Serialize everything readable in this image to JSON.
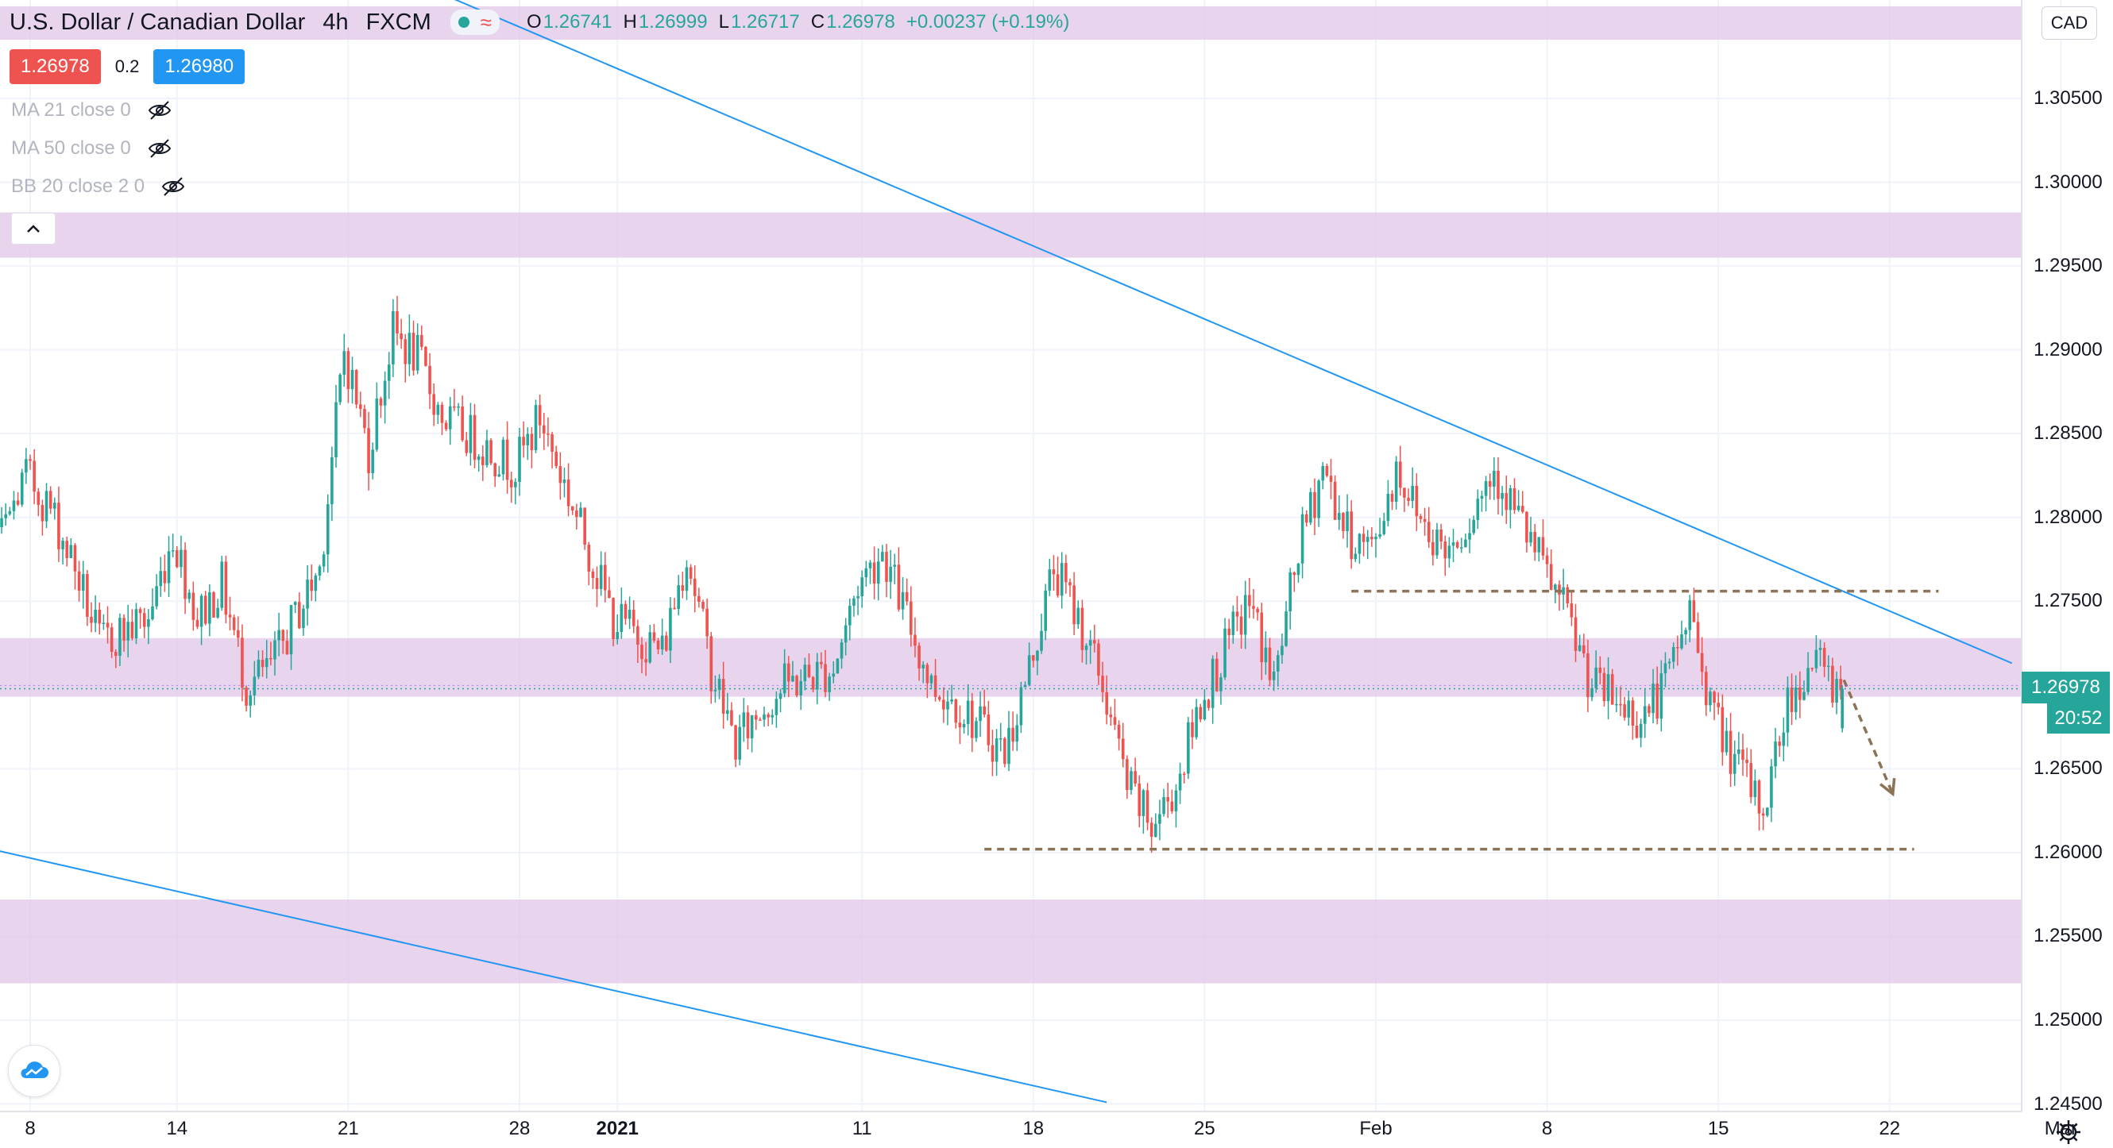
{
  "header": {
    "symbol": "U.S. Dollar / Canadian Dollar",
    "timeframe": "4h",
    "exchange": "FXCM",
    "ohlc": {
      "o_label": "O",
      "o": "1.26741",
      "h_label": "H",
      "h": "1.26999",
      "l_label": "L",
      "l": "1.26717",
      "c_label": "C",
      "c": "1.26978",
      "change": "+0.00237 (+0.19%)"
    },
    "status_icons": [
      "market-open-dot-icon",
      "data-updates-wave-icon"
    ]
  },
  "trade": {
    "sell": "1.26978",
    "spread": "0.2",
    "buy": "1.26980"
  },
  "indicators": [
    {
      "label": "MA 21 close 0",
      "icon": "eye-crossed-icon"
    },
    {
      "label": "MA 50 close 0",
      "icon": "eye-crossed-icon"
    },
    {
      "label": "BB 20 close 2 0",
      "icon": "eye-crossed-icon"
    }
  ],
  "collapse_icon": "chevron-up-icon",
  "price_axis": {
    "currency": "CAD",
    "current_price": "1.26978",
    "countdown": "20:52"
  },
  "chart_data": {
    "type": "candlestick",
    "title": "U.S. Dollar / Canadian Dollar",
    "timeframe": "4h",
    "ylim": [
      1.244,
      1.3105
    ],
    "y_ticks": [
      "1.30500",
      "1.30000",
      "1.29500",
      "1.29000",
      "1.28500",
      "1.28000",
      "1.27500",
      "1.27000",
      "1.26500",
      "1.26000",
      "1.25500",
      "1.25000",
      "1.24500"
    ],
    "x_ticks": [
      {
        "label": "8",
        "date": "2020-12-08"
      },
      {
        "label": "14",
        "date": "2020-12-14"
      },
      {
        "label": "21",
        "date": "2020-12-21"
      },
      {
        "label": "28",
        "date": "2020-12-28"
      },
      {
        "label": "2021",
        "date": "2021-01-01",
        "bold": true
      },
      {
        "label": "11",
        "date": "2021-01-11"
      },
      {
        "label": "18",
        "date": "2021-01-18"
      },
      {
        "label": "25",
        "date": "2021-01-25"
      },
      {
        "label": "Feb",
        "date": "2021-02-01"
      },
      {
        "label": "8",
        "date": "2021-02-08"
      },
      {
        "label": "15",
        "date": "2021-02-15"
      },
      {
        "label": "22",
        "date": "2021-02-22"
      },
      {
        "label": "Mar",
        "date": "2021-03-01"
      }
    ],
    "colors": {
      "up": "#26a69a",
      "down": "#ef5350",
      "zone": "#e1c6e8",
      "trendline": "#2196f3",
      "level_line": "#8b7355",
      "current_price_line": "#26a69a"
    },
    "price_path": [
      {
        "date": "2020-12-04",
        "price": 1.28
      },
      {
        "date": "2020-12-05",
        "price": 1.2815
      },
      {
        "date": "2020-12-07",
        "price": 1.279
      },
      {
        "date": "2020-12-08",
        "price": 1.2825
      },
      {
        "date": "2020-12-09",
        "price": 1.2805
      },
      {
        "date": "2020-12-10",
        "price": 1.277
      },
      {
        "date": "2020-12-11",
        "price": 1.2725
      },
      {
        "date": "2020-12-13",
        "price": 1.274
      },
      {
        "date": "2020-12-14",
        "price": 1.279
      },
      {
        "date": "2020-12-15",
        "price": 1.274
      },
      {
        "date": "2020-12-16",
        "price": 1.276
      },
      {
        "date": "2020-12-17",
        "price": 1.27
      },
      {
        "date": "2020-12-18",
        "price": 1.271
      },
      {
        "date": "2020-12-20",
        "price": 1.277
      },
      {
        "date": "2020-12-21",
        "price": 1.29
      },
      {
        "date": "2020-12-22",
        "price": 1.284
      },
      {
        "date": "2020-12-23",
        "price": 1.291
      },
      {
        "date": "2020-12-24",
        "price": 1.2895
      },
      {
        "date": "2020-12-25",
        "price": 1.286
      },
      {
        "date": "2020-12-27",
        "price": 1.284
      },
      {
        "date": "2020-12-28",
        "price": 1.283
      },
      {
        "date": "2020-12-29",
        "price": 1.286
      },
      {
        "date": "2020-12-30",
        "price": 1.282
      },
      {
        "date": "2020-12-31",
        "price": 1.278
      },
      {
        "date": "2021-01-01",
        "price": 1.274
      },
      {
        "date": "2021-01-03",
        "price": 1.272
      },
      {
        "date": "2021-01-04",
        "price": 1.278
      },
      {
        "date": "2021-01-05",
        "price": 1.271
      },
      {
        "date": "2021-01-06",
        "price": 1.2665
      },
      {
        "date": "2021-01-07",
        "price": 1.2685
      },
      {
        "date": "2021-01-08",
        "price": 1.27
      },
      {
        "date": "2021-01-10",
        "price": 1.271
      },
      {
        "date": "2021-01-11",
        "price": 1.276
      },
      {
        "date": "2021-01-12",
        "price": 1.278
      },
      {
        "date": "2021-01-13",
        "price": 1.274
      },
      {
        "date": "2021-01-14",
        "price": 1.27
      },
      {
        "date": "2021-01-15",
        "price": 1.269
      },
      {
        "date": "2021-01-17",
        "price": 1.266
      },
      {
        "date": "2021-01-18",
        "price": 1.271
      },
      {
        "date": "2021-01-19",
        "price": 1.277
      },
      {
        "date": "2021-01-20",
        "price": 1.274
      },
      {
        "date": "2021-01-21",
        "price": 1.27
      },
      {
        "date": "2021-01-22",
        "price": 1.264
      },
      {
        "date": "2021-01-23",
        "price": 1.2615
      },
      {
        "date": "2021-01-24",
        "price": 1.264
      },
      {
        "date": "2021-01-25",
        "price": 1.269
      },
      {
        "date": "2021-01-26",
        "price": 1.272
      },
      {
        "date": "2021-01-27",
        "price": 1.275
      },
      {
        "date": "2021-01-28",
        "price": 1.27
      },
      {
        "date": "2021-01-29",
        "price": 1.278
      },
      {
        "date": "2021-01-30",
        "price": 1.283
      },
      {
        "date": "2021-01-31",
        "price": 1.279
      },
      {
        "date": "2021-02-01",
        "price": 1.278
      },
      {
        "date": "2021-02-02",
        "price": 1.283
      },
      {
        "date": "2021-02-03",
        "price": 1.28
      },
      {
        "date": "2021-02-04",
        "price": 1.278
      },
      {
        "date": "2021-02-05",
        "price": 1.28
      },
      {
        "date": "2021-02-06",
        "price": 1.283
      },
      {
        "date": "2021-02-07",
        "price": 1.28
      },
      {
        "date": "2021-02-08",
        "price": 1.277
      },
      {
        "date": "2021-02-09",
        "price": 1.274
      },
      {
        "date": "2021-02-10",
        "price": 1.27
      },
      {
        "date": "2021-02-11",
        "price": 1.269
      },
      {
        "date": "2021-02-12",
        "price": 1.268
      },
      {
        "date": "2021-02-13",
        "price": 1.27
      },
      {
        "date": "2021-02-14",
        "price": 1.2745
      },
      {
        "date": "2021-02-15",
        "price": 1.268
      },
      {
        "date": "2021-02-16",
        "price": 1.265
      },
      {
        "date": "2021-02-17",
        "price": 1.2625
      },
      {
        "date": "2021-02-18",
        "price": 1.269
      },
      {
        "date": "2021-02-19",
        "price": 1.2715
      },
      {
        "date": "2021-02-20",
        "price": 1.27
      }
    ],
    "last_candle": {
      "open": 1.26741,
      "high": 1.26999,
      "low": 1.26717,
      "close": 1.26978
    },
    "current_price": 1.26978,
    "zones": [
      {
        "from": 1.3085,
        "to": 1.3105
      },
      {
        "from": 1.2955,
        "to": 1.2982
      },
      {
        "from": 1.2693,
        "to": 1.2728
      },
      {
        "from": 1.2522,
        "to": 1.2572
      }
    ],
    "trendlines": [
      {
        "from": {
          "date": "2020-12-22",
          "price": 1.313
        },
        "to": {
          "date": "2021-02-27",
          "price": 1.2713
        }
      },
      {
        "from": {
          "date": "2020-12-04",
          "price": 1.261
        },
        "to": {
          "date": "2021-01-21",
          "price": 1.2451
        }
      }
    ],
    "levels": [
      {
        "price": 1.2756,
        "from": "2021-01-31",
        "to": "2021-02-24",
        "style": "dashed"
      },
      {
        "price": 1.2602,
        "from": "2021-01-16",
        "to": "2021-02-23",
        "style": "dashed"
      }
    ],
    "arrow": {
      "from": {
        "date": "2021-02-20",
        "price": 1.2703
      },
      "to": {
        "date": "2021-02-22",
        "price": 1.2635
      },
      "style": "dashed"
    }
  }
}
